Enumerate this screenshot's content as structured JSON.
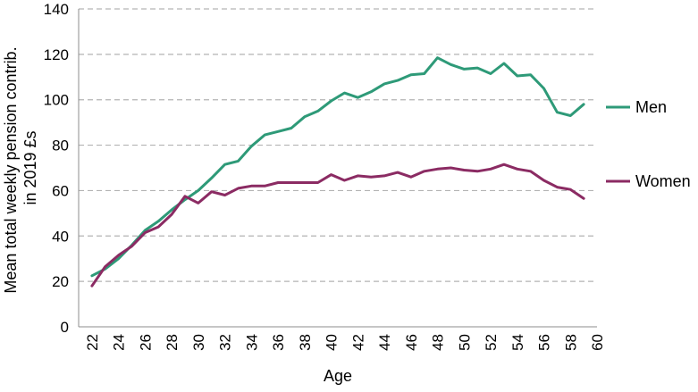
{
  "chart_data": {
    "type": "line",
    "title": "",
    "xlabel": "Age",
    "ylabel": "Mean total weekly pension contrib.",
    "ylabel_line2": "in 2019 £s",
    "xlim": [
      21,
      60
    ],
    "ylim": [
      0,
      140
    ],
    "yticks": [
      0,
      20,
      40,
      60,
      80,
      100,
      120,
      140
    ],
    "xticks": [
      22,
      24,
      26,
      28,
      30,
      32,
      34,
      36,
      38,
      40,
      42,
      44,
      46,
      48,
      50,
      52,
      54,
      56,
      58,
      60
    ],
    "grid": "horizontal dashed",
    "legend": "right, labels at line ends",
    "x": [
      22,
      23,
      24,
      25,
      26,
      27,
      28,
      29,
      30,
      31,
      32,
      33,
      34,
      35,
      36,
      37,
      38,
      39,
      40,
      41,
      42,
      43,
      44,
      45,
      46,
      47,
      48,
      49,
      50,
      51,
      52,
      53,
      54,
      55,
      56,
      57,
      58,
      59
    ],
    "series": [
      {
        "name": "Men",
        "color": "#2e9a78",
        "values": [
          22.5,
          25.5,
          30,
          36,
          42.5,
          46.5,
          51.5,
          56,
          60,
          65.5,
          71.5,
          73,
          79.5,
          84.5,
          86,
          87.5,
          92.5,
          95,
          99.5,
          103,
          101,
          103.5,
          107,
          108.5,
          111,
          111.5,
          118.5,
          115.5,
          113.5,
          114,
          111.5,
          116,
          110.5,
          111,
          105,
          94.5,
          93,
          98
        ]
      },
      {
        "name": "Women",
        "color": "#8b2b63",
        "values": [
          18,
          26.5,
          31.5,
          35.5,
          41.5,
          44,
          49.5,
          57.5,
          54.5,
          59.5,
          58,
          61,
          62,
          62,
          63.5,
          63.5,
          63.5,
          63.5,
          67,
          64.5,
          66.5,
          66,
          66.5,
          68,
          66,
          68.5,
          69.5,
          70,
          69,
          68.5,
          69.5,
          71.5,
          69.5,
          68.5,
          64.5,
          61.5,
          60.5,
          56.5
        ]
      }
    ]
  }
}
